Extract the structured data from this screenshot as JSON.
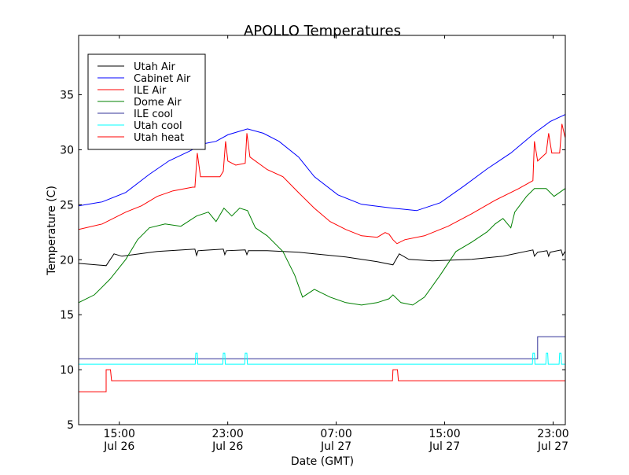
{
  "chart_data": {
    "type": "line",
    "title": "APOLLO Temperatures",
    "xlabel": "Date (GMT)",
    "ylabel": "Temperature (C)",
    "x_units": "hours since Jul 26 00:00 GMT",
    "xlim": [
      12.0,
      47.9
    ],
    "ylim": [
      5,
      40.4
    ],
    "yticks": [
      5,
      10,
      15,
      20,
      25,
      30,
      35
    ],
    "xticks": [
      {
        "value": 15,
        "time": "15:00",
        "date": "Jul 26"
      },
      {
        "value": 23,
        "time": "23:00",
        "date": "Jul 26"
      },
      {
        "value": 31,
        "time": "07:00",
        "date": "Jul 27"
      },
      {
        "value": 39,
        "time": "15:00",
        "date": "Jul 27"
      },
      {
        "value": 47,
        "time": "23:00",
        "date": "Jul 27"
      }
    ],
    "grid": false,
    "legend_position": "top-left",
    "series": [
      {
        "name": "Utah Air",
        "color": "#000000",
        "points": [
          [
            12.0,
            19.67
          ],
          [
            14.03,
            19.46
          ],
          [
            14.61,
            20.53
          ],
          [
            15.19,
            20.32
          ],
          [
            17.8,
            20.75
          ],
          [
            20.58,
            20.96
          ],
          [
            20.7,
            20.39
          ],
          [
            20.81,
            20.82
          ],
          [
            22.67,
            20.96
          ],
          [
            22.78,
            20.46
          ],
          [
            22.9,
            20.82
          ],
          [
            24.29,
            20.89
          ],
          [
            24.41,
            20.46
          ],
          [
            24.52,
            20.82
          ],
          [
            25.91,
            20.82
          ],
          [
            28.23,
            20.68
          ],
          [
            31.71,
            20.25
          ],
          [
            34.03,
            19.82
          ],
          [
            35.19,
            19.53
          ],
          [
            35.65,
            20.53
          ],
          [
            36.35,
            20.03
          ],
          [
            38.09,
            19.89
          ],
          [
            40.99,
            20.03
          ],
          [
            43.3,
            20.32
          ],
          [
            45.51,
            20.89
          ],
          [
            45.62,
            20.32
          ],
          [
            45.86,
            20.68
          ],
          [
            46.55,
            20.82
          ],
          [
            46.67,
            20.32
          ],
          [
            46.78,
            20.68
          ],
          [
            47.59,
            20.89
          ],
          [
            47.71,
            20.39
          ],
          [
            47.88,
            20.75
          ]
        ]
      },
      {
        "name": "Cabinet Air",
        "color": "#0000ff",
        "points": [
          [
            12.0,
            24.9
          ],
          [
            13.74,
            25.26
          ],
          [
            15.48,
            26.12
          ],
          [
            17.22,
            27.77
          ],
          [
            18.67,
            28.99
          ],
          [
            20.12,
            29.84
          ],
          [
            21.28,
            30.56
          ],
          [
            22.14,
            30.77
          ],
          [
            23.01,
            31.36
          ],
          [
            24.46,
            31.9
          ],
          [
            25.62,
            31.5
          ],
          [
            26.78,
            30.77
          ],
          [
            28.23,
            29.34
          ],
          [
            29.39,
            27.55
          ],
          [
            31.13,
            25.9
          ],
          [
            32.87,
            25.04
          ],
          [
            35.19,
            24.69
          ],
          [
            36.93,
            24.47
          ],
          [
            38.67,
            25.18
          ],
          [
            40.41,
            26.69
          ],
          [
            42.14,
            28.27
          ],
          [
            43.88,
            29.7
          ],
          [
            45.62,
            31.5
          ],
          [
            46.78,
            32.56
          ],
          [
            47.88,
            33.2
          ]
        ]
      },
      {
        "name": "ILE Air",
        "color": "#ff0000",
        "points": [
          [
            12.0,
            22.75
          ],
          [
            13.74,
            23.25
          ],
          [
            15.48,
            24.33
          ],
          [
            16.64,
            24.9
          ],
          [
            17.8,
            25.76
          ],
          [
            18.96,
            26.26
          ],
          [
            20.41,
            26.6
          ],
          [
            20.58,
            26.6
          ],
          [
            20.75,
            29.7
          ],
          [
            20.99,
            27.55
          ],
          [
            22.43,
            27.55
          ],
          [
            22.67,
            28.04
          ],
          [
            22.84,
            30.77
          ],
          [
            23.01,
            28.97
          ],
          [
            23.59,
            28.6
          ],
          [
            24.29,
            28.77
          ],
          [
            24.41,
            31.5
          ],
          [
            24.64,
            29.34
          ],
          [
            25.91,
            28.2
          ],
          [
            27.07,
            27.55
          ],
          [
            28.23,
            26.1
          ],
          [
            29.39,
            24.69
          ],
          [
            30.55,
            23.47
          ],
          [
            31.71,
            22.75
          ],
          [
            32.87,
            22.18
          ],
          [
            34.03,
            22.04
          ],
          [
            34.61,
            22.47
          ],
          [
            34.9,
            22.32
          ],
          [
            35.19,
            21.82
          ],
          [
            35.48,
            21.46
          ],
          [
            36.06,
            21.82
          ],
          [
            37.51,
            22.18
          ],
          [
            39.25,
            23.04
          ],
          [
            40.99,
            24.18
          ],
          [
            42.72,
            25.4
          ],
          [
            44.46,
            26.47
          ],
          [
            45.51,
            27.19
          ],
          [
            45.62,
            30.77
          ],
          [
            45.86,
            28.97
          ],
          [
            46.49,
            29.7
          ],
          [
            46.67,
            31.5
          ],
          [
            46.9,
            29.7
          ],
          [
            47.48,
            29.7
          ],
          [
            47.65,
            32.35
          ],
          [
            47.88,
            31.13
          ]
        ]
      },
      {
        "name": "Dome Air",
        "color": "#008000",
        "points": [
          [
            12.0,
            16.1
          ],
          [
            13.16,
            16.81
          ],
          [
            14.32,
            18.24
          ],
          [
            15.48,
            20.03
          ],
          [
            16.35,
            21.82
          ],
          [
            17.22,
            22.9
          ],
          [
            18.38,
            23.25
          ],
          [
            19.54,
            23.04
          ],
          [
            20.7,
            23.97
          ],
          [
            21.57,
            24.33
          ],
          [
            22.14,
            23.47
          ],
          [
            22.72,
            24.69
          ],
          [
            23.3,
            23.97
          ],
          [
            23.88,
            24.69
          ],
          [
            24.46,
            24.47
          ],
          [
            25.04,
            22.9
          ],
          [
            25.91,
            22.18
          ],
          [
            27.07,
            20.75
          ],
          [
            27.94,
            18.6
          ],
          [
            28.52,
            16.6
          ],
          [
            29.39,
            17.31
          ],
          [
            30.55,
            16.6
          ],
          [
            31.71,
            16.1
          ],
          [
            32.87,
            15.88
          ],
          [
            34.03,
            16.1
          ],
          [
            34.9,
            16.45
          ],
          [
            35.19,
            16.81
          ],
          [
            35.77,
            16.1
          ],
          [
            36.64,
            15.88
          ],
          [
            37.51,
            16.6
          ],
          [
            38.67,
            18.6
          ],
          [
            39.83,
            20.75
          ],
          [
            40.99,
            21.6
          ],
          [
            42.14,
            22.54
          ],
          [
            42.72,
            23.25
          ],
          [
            43.3,
            23.75
          ],
          [
            43.88,
            22.9
          ],
          [
            44.17,
            24.33
          ],
          [
            45.04,
            25.76
          ],
          [
            45.62,
            26.47
          ],
          [
            46.49,
            26.47
          ],
          [
            47.07,
            25.76
          ],
          [
            47.88,
            26.47
          ]
        ]
      },
      {
        "name": "ILE cool",
        "color": "#333399",
        "points": [
          [
            12.0,
            11
          ],
          [
            45.86,
            11
          ],
          [
            45.86,
            13
          ],
          [
            47.88,
            13
          ]
        ]
      },
      {
        "name": "Utah cool",
        "color": "#00ffff",
        "points": [
          [
            12.0,
            10.5
          ],
          [
            20.6,
            10.5
          ],
          [
            20.64,
            11.5
          ],
          [
            20.75,
            11.5
          ],
          [
            20.79,
            10.5
          ],
          [
            22.63,
            10.5
          ],
          [
            22.67,
            11.5
          ],
          [
            22.78,
            11.5
          ],
          [
            22.82,
            10.5
          ],
          [
            24.25,
            10.5
          ],
          [
            24.29,
            11.5
          ],
          [
            24.41,
            11.5
          ],
          [
            24.45,
            10.5
          ],
          [
            45.47,
            10.5
          ],
          [
            45.51,
            11.5
          ],
          [
            45.62,
            11.5
          ],
          [
            45.66,
            10.5
          ],
          [
            46.46,
            10.5
          ],
          [
            46.5,
            11.5
          ],
          [
            46.6,
            11.5
          ],
          [
            46.64,
            10.5
          ],
          [
            47.44,
            10.5
          ],
          [
            47.48,
            11.5
          ],
          [
            47.58,
            11.5
          ],
          [
            47.62,
            10.5
          ],
          [
            47.88,
            10.5
          ]
        ]
      },
      {
        "name": "Utah heat",
        "color": "#ff0000",
        "points": [
          [
            12.0,
            8
          ],
          [
            14.03,
            8
          ],
          [
            14.03,
            10
          ],
          [
            14.35,
            10
          ],
          [
            14.43,
            9
          ],
          [
            35.15,
            9
          ],
          [
            35.19,
            10
          ],
          [
            35.52,
            10
          ],
          [
            35.59,
            9
          ],
          [
            47.88,
            9
          ]
        ]
      }
    ]
  }
}
